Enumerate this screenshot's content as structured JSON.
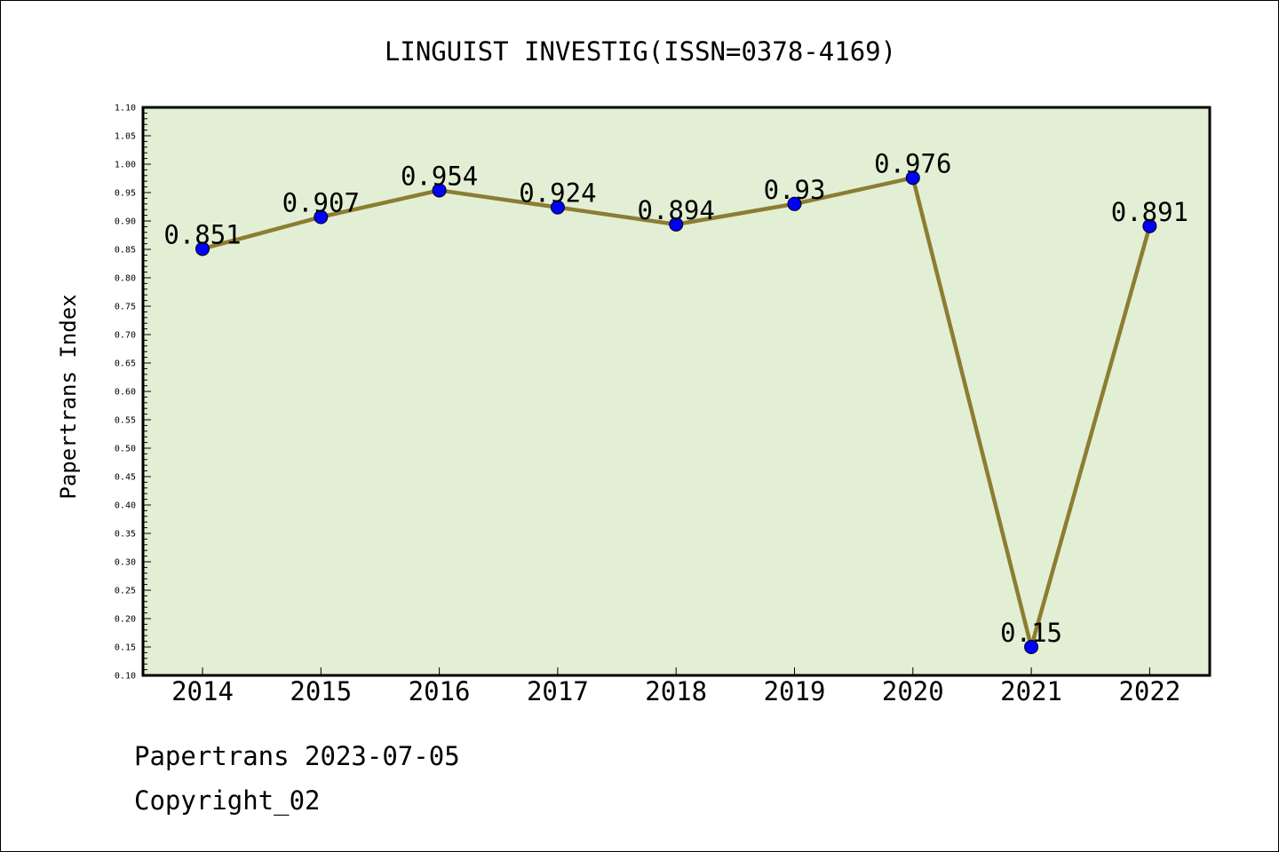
{
  "colors": {
    "plot_background": "#e2efd5",
    "line": "#8c7d32",
    "marker": "#0000ff",
    "axis": "#000000"
  },
  "footer": {
    "date_line": "Papertrans 2023-07-05",
    "copyright": "Copyright_02"
  },
  "chart_data": {
    "type": "line",
    "title": "LINGUIST INVESTIG(ISSN=0378-4169)",
    "xlabel": "",
    "ylabel": "Papertrans Index",
    "categories": [
      "2014",
      "2015",
      "2016",
      "2017",
      "2018",
      "2019",
      "2020",
      "2021",
      "2022"
    ],
    "series": [
      {
        "values": [
          0.851,
          0.907,
          0.954,
          0.924,
          0.894,
          0.93,
          0.976,
          0.15,
          0.891
        ],
        "labels": [
          "0.851",
          "0.907",
          "0.954",
          "0.924",
          "0.894",
          "0.93",
          "0.976",
          "0.15",
          "0.891"
        ]
      }
    ],
    "ylim": [
      0.1,
      1.1
    ],
    "yticks": [
      "0.10",
      "0.15",
      "0.20",
      "0.25",
      "0.30",
      "0.35",
      "0.40",
      "0.45",
      "0.50",
      "0.55",
      "0.60",
      "0.65",
      "0.70",
      "0.75",
      "0.80",
      "0.85",
      "0.90",
      "0.95",
      "1.00",
      "1.05",
      "1.10"
    ],
    "grid": false,
    "legend": "none"
  }
}
